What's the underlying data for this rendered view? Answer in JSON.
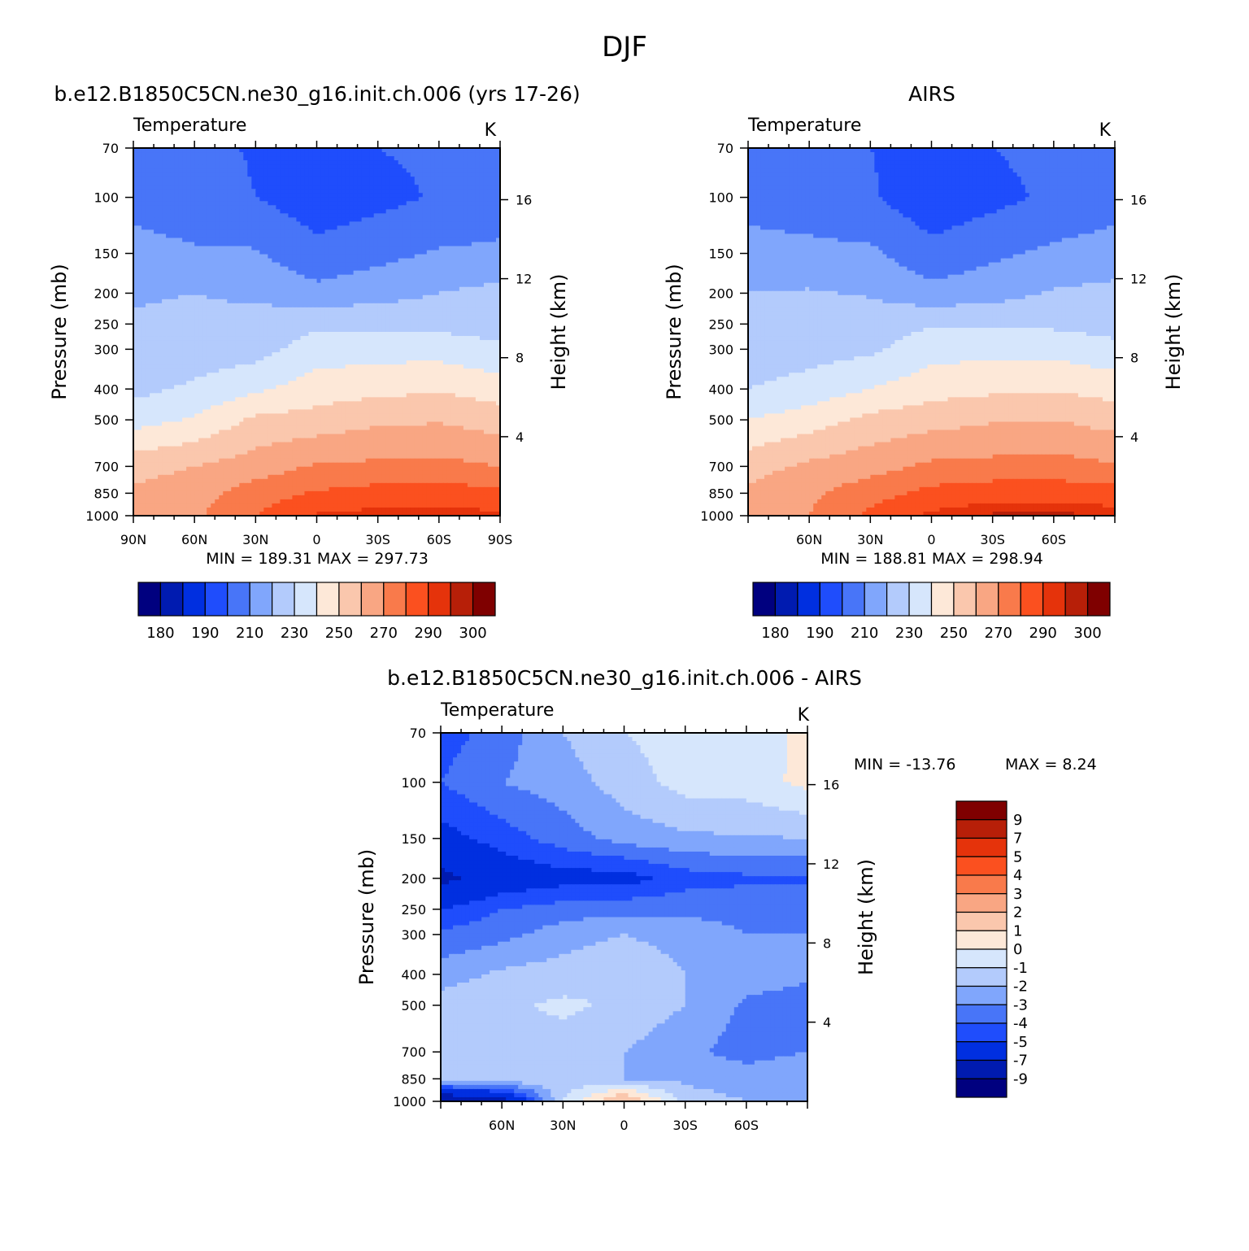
{
  "figure": {
    "title": "DJF"
  },
  "palette": {
    "full": [
      "#00007f",
      "#001bb0",
      "#002fe0",
      "#1f4dfc",
      "#4875f8",
      "#80a6fc",
      "#b3cbfc",
      "#d6e6fc",
      "#fde8d8",
      "#fac7ad",
      "#f9a683",
      "#f97a4b",
      "#fb501f",
      "#e5330b",
      "#b71f08",
      "#7f0000"
    ],
    "diff": [
      "#00007f",
      "#001bb0",
      "#002fe0",
      "#1f4dfc",
      "#4875f8",
      "#80a6fc",
      "#b3cbfc",
      "#d6e6fc",
      "#fde8d8",
      "#fac7ad",
      "#f9a683",
      "#f97a4b",
      "#fb501f",
      "#e5330b",
      "#b71f08",
      "#7f0000"
    ]
  },
  "panels": [
    {
      "id": "model",
      "title": "b.e12.B1850C5CN.ne30_g16.init.ch.006 (yrs 17-26)",
      "variable": "Temperature",
      "units": "K",
      "stats": "MIN =  189.31   MAX =  297.73",
      "ylabel": "Pressure (mb)",
      "y2label": "Height (km)",
      "xticks": [
        "90N",
        "60N",
        "30N",
        "0",
        "30S",
        "60S",
        "90S"
      ],
      "yticks": [
        "70",
        "100",
        "150",
        "200",
        "250",
        "300",
        "400",
        "500",
        "700",
        "850",
        "1000"
      ],
      "y2ticks": [
        "16",
        "12",
        "8",
        "4"
      ],
      "colorbar_labels": [
        "180",
        "190",
        "210",
        "230",
        "250",
        "270",
        "290",
        "300"
      ]
    },
    {
      "id": "obs",
      "title": "AIRS",
      "variable": "Temperature",
      "units": "K",
      "stats": "MIN =  188.81   MAX =  298.94",
      "ylabel": "Pressure (mb)",
      "y2label": "Height (km)",
      "xticks": [
        "60N",
        "30N",
        "0",
        "30S",
        "60S"
      ],
      "yticks": [
        "70",
        "100",
        "150",
        "200",
        "250",
        "300",
        "400",
        "500",
        "700",
        "850",
        "1000"
      ],
      "y2ticks": [
        "16",
        "12",
        "8",
        "4"
      ],
      "colorbar_labels": [
        "180",
        "190",
        "210",
        "230",
        "250",
        "270",
        "290",
        "300"
      ]
    },
    {
      "id": "diff",
      "title": "b.e12.B1850C5CN.ne30_g16.init.ch.006 - AIRS",
      "variable": "Temperature",
      "units": "K",
      "stats_min": "MIN = -13.76",
      "stats_max": "MAX =    8.24",
      "ylabel": "Pressure (mb)",
      "y2label": "Height (km)",
      "xticks": [
        "60N",
        "30N",
        "0",
        "30S",
        "60S"
      ],
      "yticks": [
        "70",
        "100",
        "150",
        "200",
        "250",
        "300",
        "400",
        "500",
        "700",
        "850",
        "1000"
      ],
      "y2ticks": [
        "16",
        "12",
        "8",
        "4"
      ],
      "colorbar_labels": [
        "9",
        "7",
        "5",
        "4",
        "3",
        "2",
        "1",
        "0",
        "-1",
        "-2",
        "-3",
        "-4",
        "-5",
        "-7",
        "-9"
      ]
    }
  ],
  "chart_data": [
    {
      "type": "heatmap",
      "title": "b.e12.B1850C5CN.ne30_g16.init.ch.006 (yrs 17-26)",
      "subtitle": "Temperature",
      "units": "K",
      "xlabel": "",
      "ylabel": "Pressure (mb)",
      "y2label": "Height (km)",
      "x": [
        90,
        60,
        30,
        0,
        -30,
        -60,
        -90
      ],
      "x_labels": [
        "90N",
        "60N",
        "30N",
        "0",
        "30S",
        "60S",
        "90S"
      ],
      "y": [
        70,
        100,
        150,
        200,
        250,
        300,
        400,
        500,
        700,
        850,
        1000
      ],
      "levels": [
        180,
        185,
        190,
        200,
        210,
        220,
        230,
        240,
        250,
        260,
        270,
        280,
        290,
        295,
        300
      ],
      "min": 189.31,
      "max": 297.73,
      "values": [
        [
          205,
          203,
          199,
          198,
          200,
          202,
          203,
          205,
          203,
          199,
          212
        ],
        [
          207,
          205,
          200,
          194,
          197,
          201,
          204,
          208,
          206,
          205,
          218
        ],
        [
          213,
          211,
          211,
          203,
          207,
          211,
          212,
          216,
          219,
          220,
          225
        ],
        [
          219,
          220,
          218,
          213,
          216,
          220,
          223,
          224,
          225,
          225,
          225
        ],
        [
          221,
          222,
          224,
          228,
          228,
          227,
          225,
          223,
          223,
          223,
          224
        ],
        [
          221,
          224,
          226,
          235,
          236,
          236,
          232,
          224,
          222,
          222,
          223
        ],
        [
          227,
          232,
          238,
          245,
          247,
          249,
          245,
          238,
          231,
          230,
          229
        ],
        [
          236,
          241,
          252,
          254,
          258,
          259,
          255,
          248,
          240,
          238,
          236
        ],
        [
          256,
          260,
          265,
          271,
          272,
          273,
          270,
          263,
          257,
          252,
          252
        ],
        [
          262,
          266,
          275,
          281,
          284,
          285,
          282,
          277,
          270,
          265,
          262
        ],
        [
          262,
          268,
          280,
          291,
          293,
          294,
          292,
          288,
          280,
          272,
          268
        ]
      ]
    },
    {
      "type": "heatmap",
      "title": "AIRS",
      "subtitle": "Temperature",
      "units": "K",
      "xlabel": "",
      "ylabel": "Pressure (mb)",
      "y2label": "Height (km)",
      "x": [
        90,
        60,
        30,
        0,
        -30,
        -60,
        -90
      ],
      "x_labels": [
        "60N",
        "30N",
        "0",
        "30S",
        "60S"
      ],
      "y": [
        70,
        100,
        150,
        200,
        250,
        300,
        400,
        500,
        700,
        850,
        1000
      ],
      "levels": [
        180,
        185,
        190,
        200,
        210,
        220,
        230,
        240,
        250,
        260,
        270,
        280,
        290,
        295,
        300
      ],
      "min": 188.81,
      "max": 298.94,
      "values": [
        [
          206,
          204,
          200,
          198,
          200,
          203,
          205,
          207,
          205,
          202,
          218
        ],
        [
          208,
          206,
          201,
          193,
          197,
          202,
          206,
          208,
          207,
          207,
          218
        ],
        [
          212,
          212,
          212,
          203,
          208,
          212,
          214,
          217,
          220,
          220,
          222
        ],
        [
          220,
          221,
          219,
          213,
          216,
          221,
          223,
          225,
          225,
          225,
          223
        ],
        [
          222,
          223,
          226,
          229,
          229,
          228,
          226,
          224,
          223,
          223,
          224
        ],
        [
          223,
          226,
          228,
          236,
          237,
          237,
          233,
          225,
          223,
          223,
          225
        ],
        [
          230,
          234,
          240,
          246,
          248,
          249,
          246,
          240,
          232,
          231,
          230
        ],
        [
          240,
          245,
          253,
          256,
          259,
          260,
          256,
          249,
          241,
          239,
          237
        ],
        [
          256,
          262,
          266,
          272,
          273,
          274,
          271,
          265,
          258,
          254,
          253
        ],
        [
          262,
          268,
          276,
          283,
          286,
          286,
          284,
          279,
          272,
          266,
          262
        ],
        [
          263,
          270,
          282,
          292,
          296,
          297,
          294,
          290,
          281,
          274,
          268
        ]
      ]
    },
    {
      "type": "heatmap",
      "title": "b.e12.B1850C5CN.ne30_g16.init.ch.006 - AIRS",
      "subtitle": "Temperature",
      "units": "K",
      "xlabel": "",
      "ylabel": "Pressure (mb)",
      "y2label": "Height (km)",
      "x": [
        90,
        60,
        30,
        0,
        -30,
        -60,
        -90
      ],
      "x_labels": [
        "60N",
        "30N",
        "0",
        "30S",
        "60S"
      ],
      "y": [
        70,
        100,
        150,
        200,
        250,
        300,
        400,
        500,
        700,
        850,
        1000
      ],
      "levels": [
        -9,
        -7,
        -5,
        -4,
        -3,
        -2,
        -1,
        0,
        1,
        2,
        3,
        4,
        5,
        7,
        9
      ],
      "min": -13.76,
      "max": 8.24,
      "values": [
        [
          -4.5,
          -3.5,
          -2.0,
          -1.0,
          -0.5,
          -0.8,
          0.4,
          0.6,
          0.5,
          0.3,
          0.5
        ],
        [
          -4.0,
          -3.0,
          -2.5,
          -1.5,
          -0.6,
          -0.5,
          0.3,
          0.4,
          0.2,
          0.1,
          0.4
        ],
        [
          -5.5,
          -4.5,
          -3.5,
          -2.6,
          -2.2,
          -2.1,
          -2.0,
          -2.0,
          -1.9,
          -1.8,
          -1.5
        ],
        [
          -7.5,
          -6.0,
          -5.5,
          -5.5,
          -4.5,
          -4.2,
          -4.1,
          -4.5,
          -5.5,
          -7.0,
          -5.0
        ],
        [
          -5.0,
          -4.0,
          -3.5,
          -3.3,
          -3.2,
          -3.3,
          -3.5,
          -4.0,
          -5.0,
          -5.5,
          -4.5
        ],
        [
          -3.8,
          -3.3,
          -2.5,
          -2.0,
          -2.5,
          -3.0,
          -3.0,
          -3.0,
          -3.5,
          -4.0,
          -3.5
        ],
        [
          -2.5,
          -1.8,
          -1.5,
          -1.0,
          -2.0,
          -2.5,
          -2.8,
          -2.5,
          -2.8,
          -2.0,
          -1.5
        ],
        [
          -1.5,
          -1.2,
          -0.8,
          -1.2,
          -2.0,
          -3.2,
          -3.5,
          -2.5,
          -3.0,
          -1.5,
          -1.0
        ],
        [
          -1.2,
          -1.5,
          -1.5,
          -2.0,
          -2.8,
          -3.4,
          -3.0,
          -2.5,
          -2.5,
          -1.0,
          3.0
        ],
        [
          -1.0,
          -1.0,
          -1.5,
          -2.0,
          -2.2,
          -2.5,
          -2.0,
          -1.8,
          -1.5,
          0.0,
          0.5
        ],
        [
          -9.5,
          -8.0,
          -1.0,
          2.5,
          -1.5,
          -2.0,
          -2.0,
          -1.5,
          -1.0,
          -0.5,
          0.0
        ]
      ]
    }
  ]
}
